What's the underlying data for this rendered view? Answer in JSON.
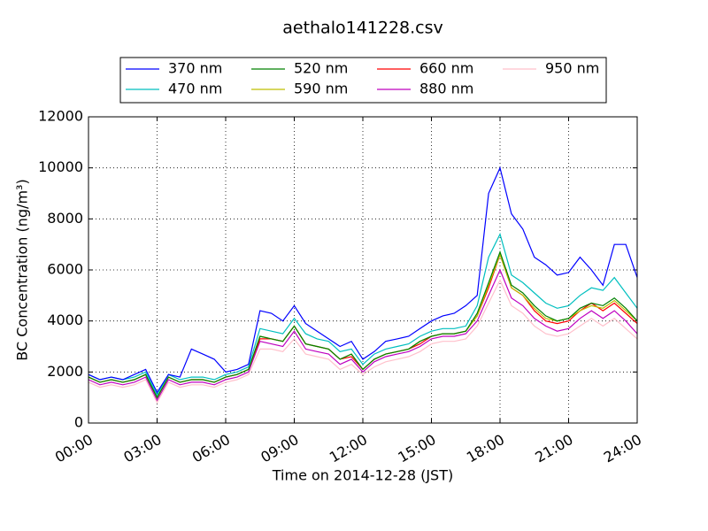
{
  "chart_data": {
    "type": "line",
    "title": "aethalo141228.csv",
    "x_label": "Time on 2014-12-28 (JST)",
    "y_label": "BC Concentration (ng/m³)",
    "x": [
      0,
      0.5,
      1,
      1.5,
      2,
      2.5,
      3,
      3.5,
      4,
      4.5,
      5,
      5.5,
      6,
      6.5,
      7,
      7.5,
      8,
      8.5,
      9,
      9.5,
      10,
      10.5,
      11,
      11.5,
      12,
      12.5,
      13,
      13.5,
      14,
      14.5,
      15,
      15.5,
      16,
      16.5,
      17,
      17.5,
      18,
      18.5,
      19,
      19.5,
      20,
      20.5,
      21,
      21.5,
      22,
      22.5,
      23,
      23.5,
      24
    ],
    "xlim": [
      0,
      24
    ],
    "xticks": [
      {
        "value": 0,
        "label": "00:00"
      },
      {
        "value": 3,
        "label": "03:00"
      },
      {
        "value": 6,
        "label": "06:00"
      },
      {
        "value": 9,
        "label": "09:00"
      },
      {
        "value": 12,
        "label": "12:00"
      },
      {
        "value": 15,
        "label": "15:00"
      },
      {
        "value": 18,
        "label": "18:00"
      },
      {
        "value": 21,
        "label": "21:00"
      },
      {
        "value": 24,
        "label": "24:00"
      }
    ],
    "ylim": [
      0,
      12000
    ],
    "yticks": [
      0,
      2000,
      4000,
      6000,
      8000,
      10000,
      12000
    ],
    "grid": true,
    "series": [
      {
        "name": "370 nm",
        "color": "#0000ff",
        "values": [
          1900,
          1700,
          1800,
          1700,
          1900,
          2100,
          1200,
          1900,
          1800,
          2900,
          2700,
          2500,
          2000,
          2100,
          2300,
          4400,
          4300,
          4000,
          4600,
          3900,
          3600,
          3300,
          3000,
          3200,
          2500,
          2800,
          3200,
          3300,
          3400,
          3700,
          4000,
          4200,
          4300,
          4600,
          5000,
          9000,
          10000,
          8200,
          7600,
          6500,
          6200,
          5800,
          5900,
          6500,
          6000,
          5400,
          7000,
          7000,
          5700
        ]
      },
      {
        "name": "470 nm",
        "color": "#00bfbf",
        "values": [
          1900,
          1700,
          1800,
          1700,
          1800,
          2000,
          1100,
          1900,
          1700,
          1800,
          1800,
          1700,
          1900,
          2000,
          2200,
          3700,
          3600,
          3500,
          4100,
          3500,
          3300,
          3200,
          2800,
          2900,
          2300,
          2700,
          2900,
          3000,
          3100,
          3400,
          3600,
          3700,
          3700,
          3800,
          4600,
          6500,
          7400,
          5800,
          5500,
          5100,
          4700,
          4500,
          4600,
          5000,
          5300,
          5200,
          5700,
          5100,
          4500
        ]
      },
      {
        "name": "520 nm",
        "color": "#008000",
        "values": [
          1800,
          1600,
          1700,
          1600,
          1700,
          1900,
          1000,
          1800,
          1600,
          1700,
          1700,
          1600,
          1800,
          1900,
          2100,
          3400,
          3300,
          3200,
          3800,
          3100,
          3000,
          2900,
          2500,
          2700,
          2100,
          2500,
          2700,
          2800,
          2900,
          3200,
          3400,
          3500,
          3500,
          3600,
          4300,
          5500,
          6700,
          5400,
          5100,
          4600,
          4200,
          4000,
          4100,
          4500,
          4700,
          4600,
          4900,
          4500,
          4000
        ]
      },
      {
        "name": "590 nm",
        "color": "#bfbf00",
        "values": [
          1800,
          1600,
          1700,
          1600,
          1700,
          1900,
          1000,
          1800,
          1600,
          1700,
          1700,
          1600,
          1800,
          1900,
          2100,
          3400,
          3300,
          3200,
          3800,
          3100,
          3000,
          2900,
          2500,
          2700,
          2100,
          2500,
          2700,
          2800,
          2900,
          3200,
          3400,
          3500,
          3500,
          3600,
          4200,
          5400,
          6600,
          5300,
          5000,
          4500,
          4100,
          4000,
          4100,
          4400,
          4600,
          4500,
          4800,
          4400,
          4000
        ]
      },
      {
        "name": "660 nm",
        "color": "#ff0000",
        "values": [
          1800,
          1600,
          1700,
          1600,
          1700,
          1900,
          1000,
          1800,
          1600,
          1700,
          1700,
          1600,
          1800,
          1900,
          2100,
          3300,
          3300,
          3200,
          3800,
          3100,
          3000,
          2900,
          2500,
          2600,
          2100,
          2500,
          2700,
          2800,
          2900,
          3100,
          3400,
          3500,
          3500,
          3600,
          4200,
          5300,
          6600,
          5300,
          5000,
          4400,
          4000,
          3900,
          4000,
          4400,
          4700,
          4400,
          4700,
          4300,
          3900
        ]
      },
      {
        "name": "880 nm",
        "color": "#bf00bf",
        "values": [
          1700,
          1500,
          1600,
          1500,
          1600,
          1800,
          900,
          1700,
          1500,
          1600,
          1600,
          1500,
          1700,
          1800,
          2000,
          3200,
          3100,
          3000,
          3600,
          2900,
          2800,
          2700,
          2300,
          2500,
          2000,
          2400,
          2600,
          2700,
          2800,
          3000,
          3300,
          3400,
          3400,
          3500,
          4000,
          5000,
          6000,
          4900,
          4600,
          4100,
          3800,
          3600,
          3700,
          4100,
          4400,
          4100,
          4400,
          4000,
          3500
        ]
      },
      {
        "name": "950 nm",
        "color": "#ffc0cb",
        "values": [
          1600,
          1400,
          1500,
          1400,
          1500,
          1700,
          800,
          1600,
          1400,
          1500,
          1500,
          1400,
          1600,
          1700,
          1900,
          2900,
          2900,
          2800,
          3300,
          2700,
          2600,
          2500,
          2100,
          2300,
          1900,
          2200,
          2400,
          2500,
          2600,
          2800,
          3100,
          3200,
          3200,
          3300,
          3800,
          4700,
          5600,
          4600,
          4300,
          3800,
          3500,
          3400,
          3500,
          3800,
          4100,
          3800,
          4100,
          3700,
          3300
        ]
      }
    ]
  }
}
